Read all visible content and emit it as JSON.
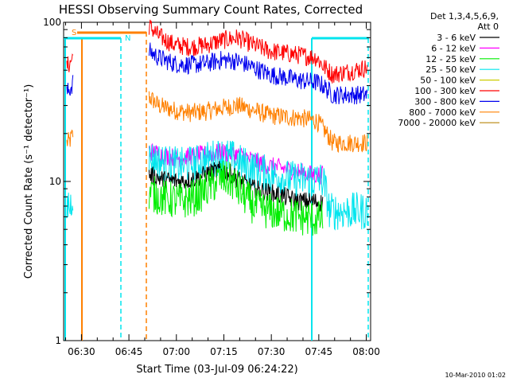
{
  "chart_data": {
    "type": "line",
    "title": "HESSI Observing Summary Count Rates, Corrected",
    "xlabel": "Start Time (03-Jul-09 06:24:22)",
    "ylabel": "Corrected Count Rate (s⁻¹ detector⁻¹)",
    "y_scale": "log",
    "ylim": [
      1,
      100
    ],
    "xlim_minutes": [
      0,
      97
    ],
    "x_ticks": [
      {
        "label": "06:30",
        "minutes": 5.63
      },
      {
        "label": "06:45",
        "minutes": 20.63
      },
      {
        "label": "07:00",
        "minutes": 35.63
      },
      {
        "label": "07:15",
        "minutes": 50.63
      },
      {
        "label": "07:30",
        "minutes": 65.63
      },
      {
        "label": "07:45",
        "minutes": 80.63
      },
      {
        "label": "08:00",
        "minutes": 95.63
      }
    ],
    "y_ticks": [
      {
        "label": "1",
        "value": 1
      },
      {
        "label": "10",
        "value": 10
      },
      {
        "label": "100",
        "value": 100
      }
    ],
    "legend_header": [
      "Det 1,3,4,5,6,9,",
      "Att 0"
    ],
    "legend_position": "right",
    "date_stamp": "10-Mar-2010 01:02",
    "flag_labels": [
      {
        "text": "S",
        "color": "#ff8000"
      },
      {
        "text": "N",
        "color": "#00e5ee"
      }
    ],
    "series": [
      {
        "name": "3 - 6 keV",
        "color": "#000000",
        "x": [
          27,
          32,
          37,
          42,
          47,
          50,
          53,
          56,
          60,
          65,
          70,
          74,
          79,
          82
        ],
        "values": [
          11,
          10.2,
          10,
          10.5,
          11.5,
          11.8,
          11.2,
          10,
          9,
          8.5,
          8,
          7.5,
          7.5,
          7.3
        ]
      },
      {
        "name": "6 - 12 keV",
        "color": "#ff00ff",
        "x": [
          27,
          32,
          37,
          42,
          47,
          50,
          53,
          56,
          60,
          65,
          70,
          74,
          79,
          82
        ],
        "values": [
          15.5,
          14.5,
          14,
          14.5,
          15,
          15.2,
          15,
          14.5,
          13.5,
          12.5,
          12,
          11.5,
          11,
          11
        ]
      },
      {
        "name": "12 - 25 keV",
        "color": "#00ee00",
        "x": [
          27,
          32,
          37,
          42,
          47,
          50,
          53,
          56,
          60,
          65,
          70,
          74,
          79,
          82
        ],
        "values": [
          8.5,
          7.8,
          7.5,
          8,
          9.5,
          10.5,
          10,
          8.5,
          7,
          6.5,
          6.2,
          6,
          5.8,
          5.8
        ]
      },
      {
        "name": "25 - 50 keV",
        "color": "#00e5ee",
        "x": [
          1,
          1.5,
          2,
          3,
          27,
          32,
          37,
          42,
          47,
          50,
          53,
          56,
          60,
          65,
          70,
          74,
          79,
          82,
          84,
          90,
          96
        ],
        "values": [
          6.5,
          7.5,
          6.8,
          8.5,
          14,
          13,
          12.5,
          13,
          14,
          14.5,
          14,
          13,
          12,
          11,
          10.5,
          10.2,
          10.2,
          10.2,
          6.5,
          6.5,
          6.5
        ]
      },
      {
        "name": "50 - 100 keV",
        "color": "#cccc00",
        "x": [],
        "values": []
      },
      {
        "name": "100 - 300 keV",
        "color": "#ff0000",
        "x": [
          1,
          2,
          3,
          27,
          30,
          35,
          40,
          45,
          50,
          55,
          60,
          65,
          70,
          75,
          80,
          82,
          85,
          90,
          96
        ],
        "values": [
          53,
          55,
          62,
          95,
          82,
          72,
          70,
          72,
          77,
          80,
          72,
          66,
          64,
          62,
          60,
          53,
          47,
          49,
          52
        ]
      },
      {
        "name": "300 - 800 keV",
        "color": "#0000ee",
        "x": [
          1,
          2,
          3,
          27,
          30,
          35,
          40,
          45,
          50,
          55,
          60,
          65,
          70,
          75,
          80,
          82,
          85,
          90,
          96
        ],
        "values": [
          36,
          38,
          42,
          66,
          60,
          55,
          54,
          55,
          58,
          57,
          52,
          47,
          45,
          43,
          42,
          40,
          35,
          35,
          35
        ]
      },
      {
        "name": "800 - 7000 keV",
        "color": "#ff8000",
        "x": [
          1,
          2,
          3,
          27,
          30,
          35,
          40,
          45,
          50,
          55,
          60,
          65,
          70,
          75,
          80,
          82,
          85,
          90,
          96
        ],
        "values": [
          17.5,
          18,
          20,
          34,
          30,
          28,
          27,
          27.5,
          29,
          30,
          28,
          26,
          25.5,
          25,
          24,
          21.5,
          17.5,
          17.5,
          17.5
        ]
      },
      {
        "name": "7000 - 20000 keV",
        "color": "#b8860b",
        "x": [],
        "values": []
      }
    ]
  }
}
